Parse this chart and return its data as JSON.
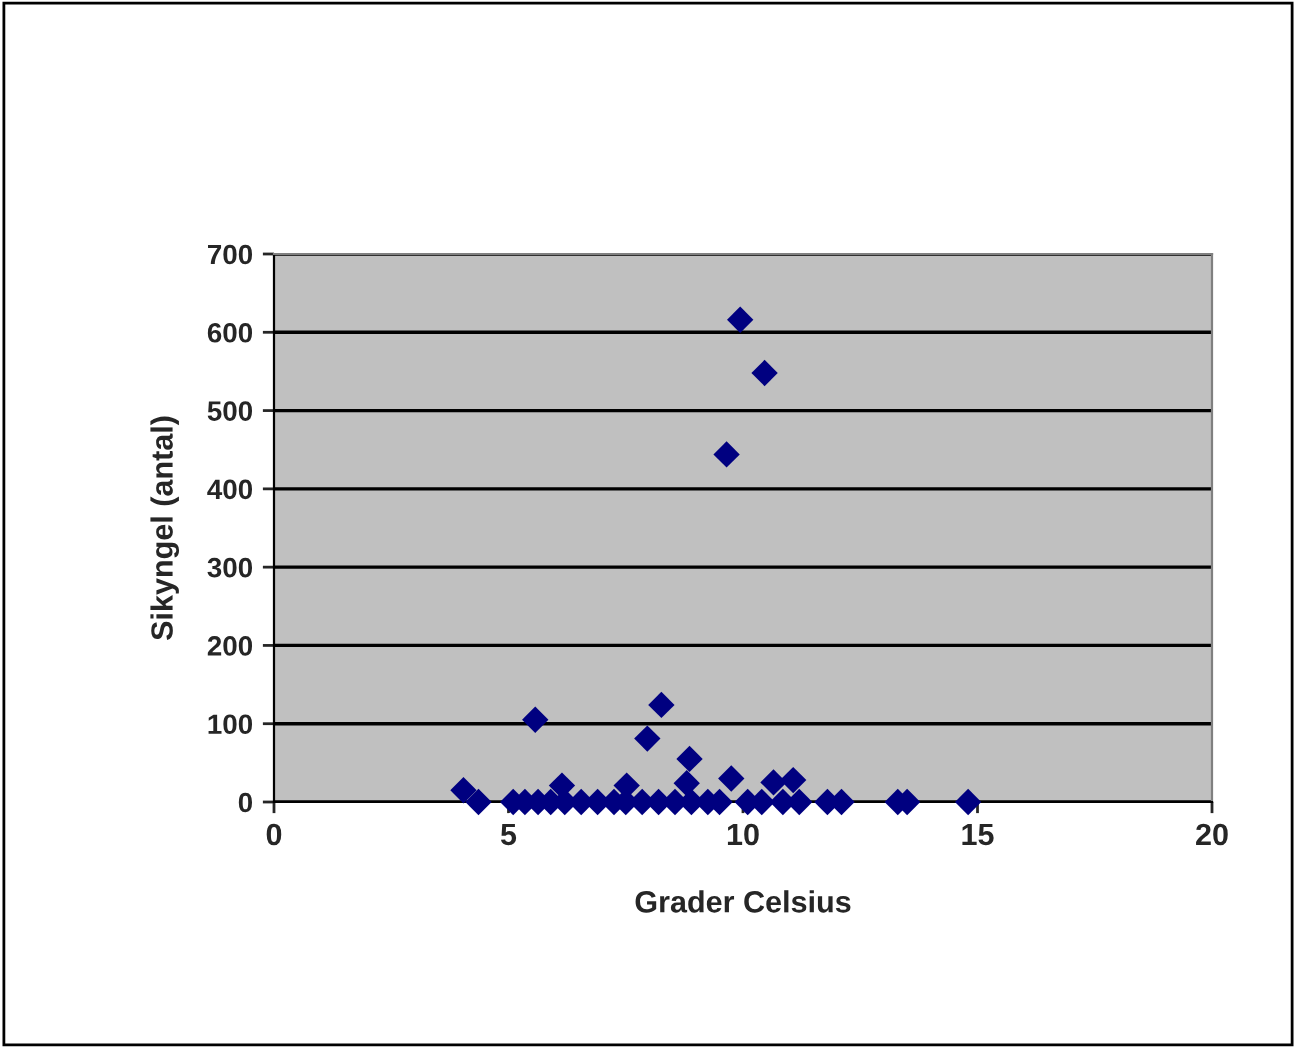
{
  "chart_data": {
    "type": "scatter",
    "xlabel": "Grader Celsius",
    "ylabel": "Sikyngel (antal)",
    "series": [
      {
        "color": "#000080",
        "x": [
          9.94,
          10.46,
          9.65,
          5.57,
          8.26,
          7.96,
          8.86,
          9.75,
          4.04,
          4.36,
          10.65,
          11.07,
          6.14,
          7.52,
          8.8,
          5.1,
          5.35,
          5.63,
          5.9,
          6.2,
          6.55,
          6.9,
          7.25,
          7.5,
          7.85,
          8.2,
          8.55,
          8.9,
          9.25,
          9.5,
          10.1,
          10.4,
          10.85,
          11.2,
          11.8,
          12.1,
          13.3,
          13.5,
          14.8
        ],
        "values": [
          616,
          548,
          444,
          105,
          124,
          81,
          55,
          30,
          15,
          0,
          25,
          28,
          21,
          21,
          24,
          0,
          0,
          0,
          0,
          0,
          0,
          0,
          0,
          0,
          0,
          0,
          0,
          0,
          0,
          0,
          0,
          0,
          0,
          0,
          0,
          0,
          0,
          0,
          0
        ]
      }
    ],
    "xlim": [
      0,
      20
    ],
    "xticks": [
      0,
      5,
      10,
      15,
      20
    ],
    "ylim": [
      0,
      700
    ],
    "yticks": [
      0,
      100,
      200,
      300,
      400,
      500,
      600,
      700
    ],
    "grid": "y",
    "marker": "diamond",
    "legend": false
  }
}
